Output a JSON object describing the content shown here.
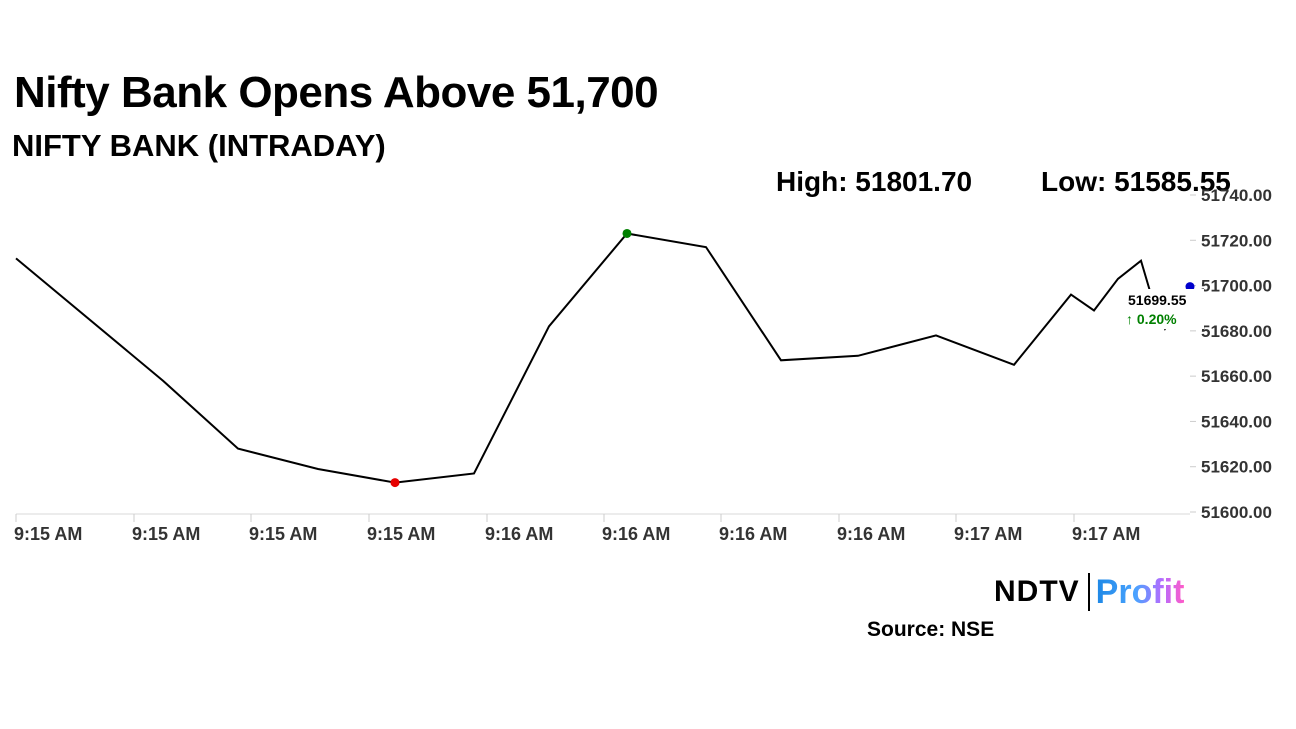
{
  "header": {
    "title": "Nifty Bank Opens Above 51,700",
    "subtitle": "NIFTY BANK (INTRADAY)",
    "high_text": "High: 51801.70",
    "low_text": "Low: 51585.55"
  },
  "footer": {
    "brand_left": "NDTV",
    "brand_right": "Profit",
    "source_text": "Source: NSE"
  },
  "chart_data": {
    "type": "line",
    "title": "NIFTY BANK (INTRADAY)",
    "xlabel": "",
    "ylabel": "",
    "ylim": [
      51600,
      51740
    ],
    "y_ticks": [
      "51600.00",
      "51620.00",
      "51640.00",
      "51660.00",
      "51680.00",
      "51700.00",
      "51720.00",
      "51740.00"
    ],
    "x_tick_labels": [
      "9:15 AM",
      "9:15 AM",
      "9:15 AM",
      "9:15 AM",
      "9:16 AM",
      "9:16 AM",
      "9:16 AM",
      "9:16 AM",
      "9:17 AM",
      "9:17 AM"
    ],
    "series": [
      {
        "values": [
          51712,
          51658,
          51628,
          51619,
          51613,
          51617,
          51682,
          51723,
          51717,
          51667,
          51669,
          51678,
          51665,
          51696,
          51689,
          51703,
          51711,
          51696,
          51681,
          51699.55
        ]
      }
    ],
    "markers": {
      "high_index": 7,
      "low_index": 4,
      "high_color": "#008000",
      "low_color": "#e60000",
      "last_color": "#0000cc"
    },
    "last_value_label": "51699.55",
    "change_label": "↑ 0.20%",
    "change_color": "#008000",
    "line_color": "#000000",
    "grid": false
  }
}
